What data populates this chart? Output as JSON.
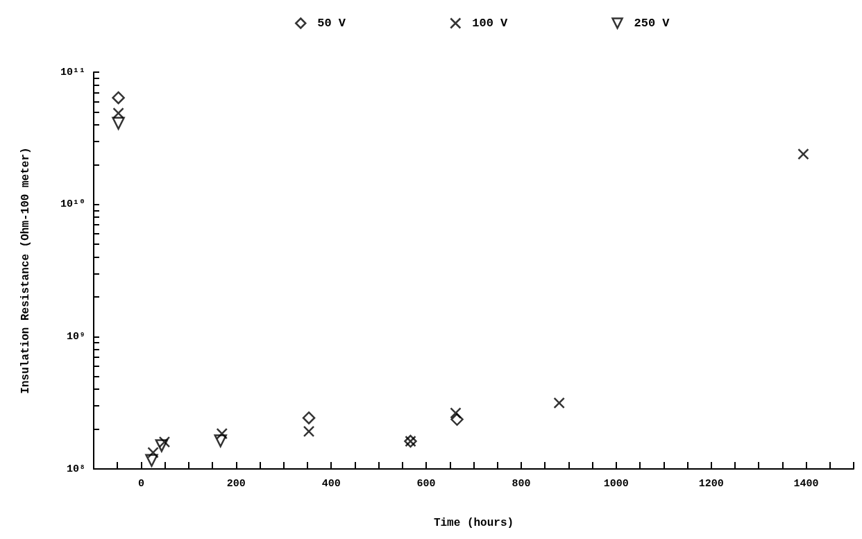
{
  "chart_data": {
    "type": "scatter",
    "xlabel": "Time (hours)",
    "ylabel": "Insulation Resistance (Ohm-100 meter)",
    "xlim": [
      -100,
      1500
    ],
    "xticks": [
      0,
      200,
      400,
      600,
      800,
      1000,
      1200,
      1400
    ],
    "ylim": [
      100000000,
      100000000000
    ],
    "log": "y",
    "yticks": [
      {
        "value": 100000000,
        "label": "10⁸"
      },
      {
        "value": 1000000000,
        "label": "10⁹"
      },
      {
        "value": 10000000000,
        "label": "10¹⁰"
      },
      {
        "value": 100000000000,
        "label": "10¹¹"
      }
    ],
    "grid": false,
    "legend": "top",
    "tick_labels": "xy",
    "series": [
      {
        "name": "50 V",
        "color": "#000000",
        "marker": "diamond",
        "x": [
          -48,
          353,
          567,
          665
        ],
        "values": [
          64000000000,
          243000000,
          162000000,
          237000000
        ]
      },
      {
        "name": "100 V",
        "color": "#000000",
        "marker": "cross",
        "x": [
          -48,
          25,
          49,
          170,
          353,
          567,
          662,
          880,
          1394
        ],
        "values": [
          49000000000,
          133000000,
          160000000,
          185000000,
          192000000,
          162000000,
          265000000,
          315000000,
          24000000000
        ]
      },
      {
        "name": "250 V",
        "color": "#000000",
        "marker": "triangle",
        "x": [
          -48,
          22,
          43,
          167
        ],
        "values": [
          41000000000,
          116000000,
          150000000,
          163000000
        ]
      }
    ]
  }
}
